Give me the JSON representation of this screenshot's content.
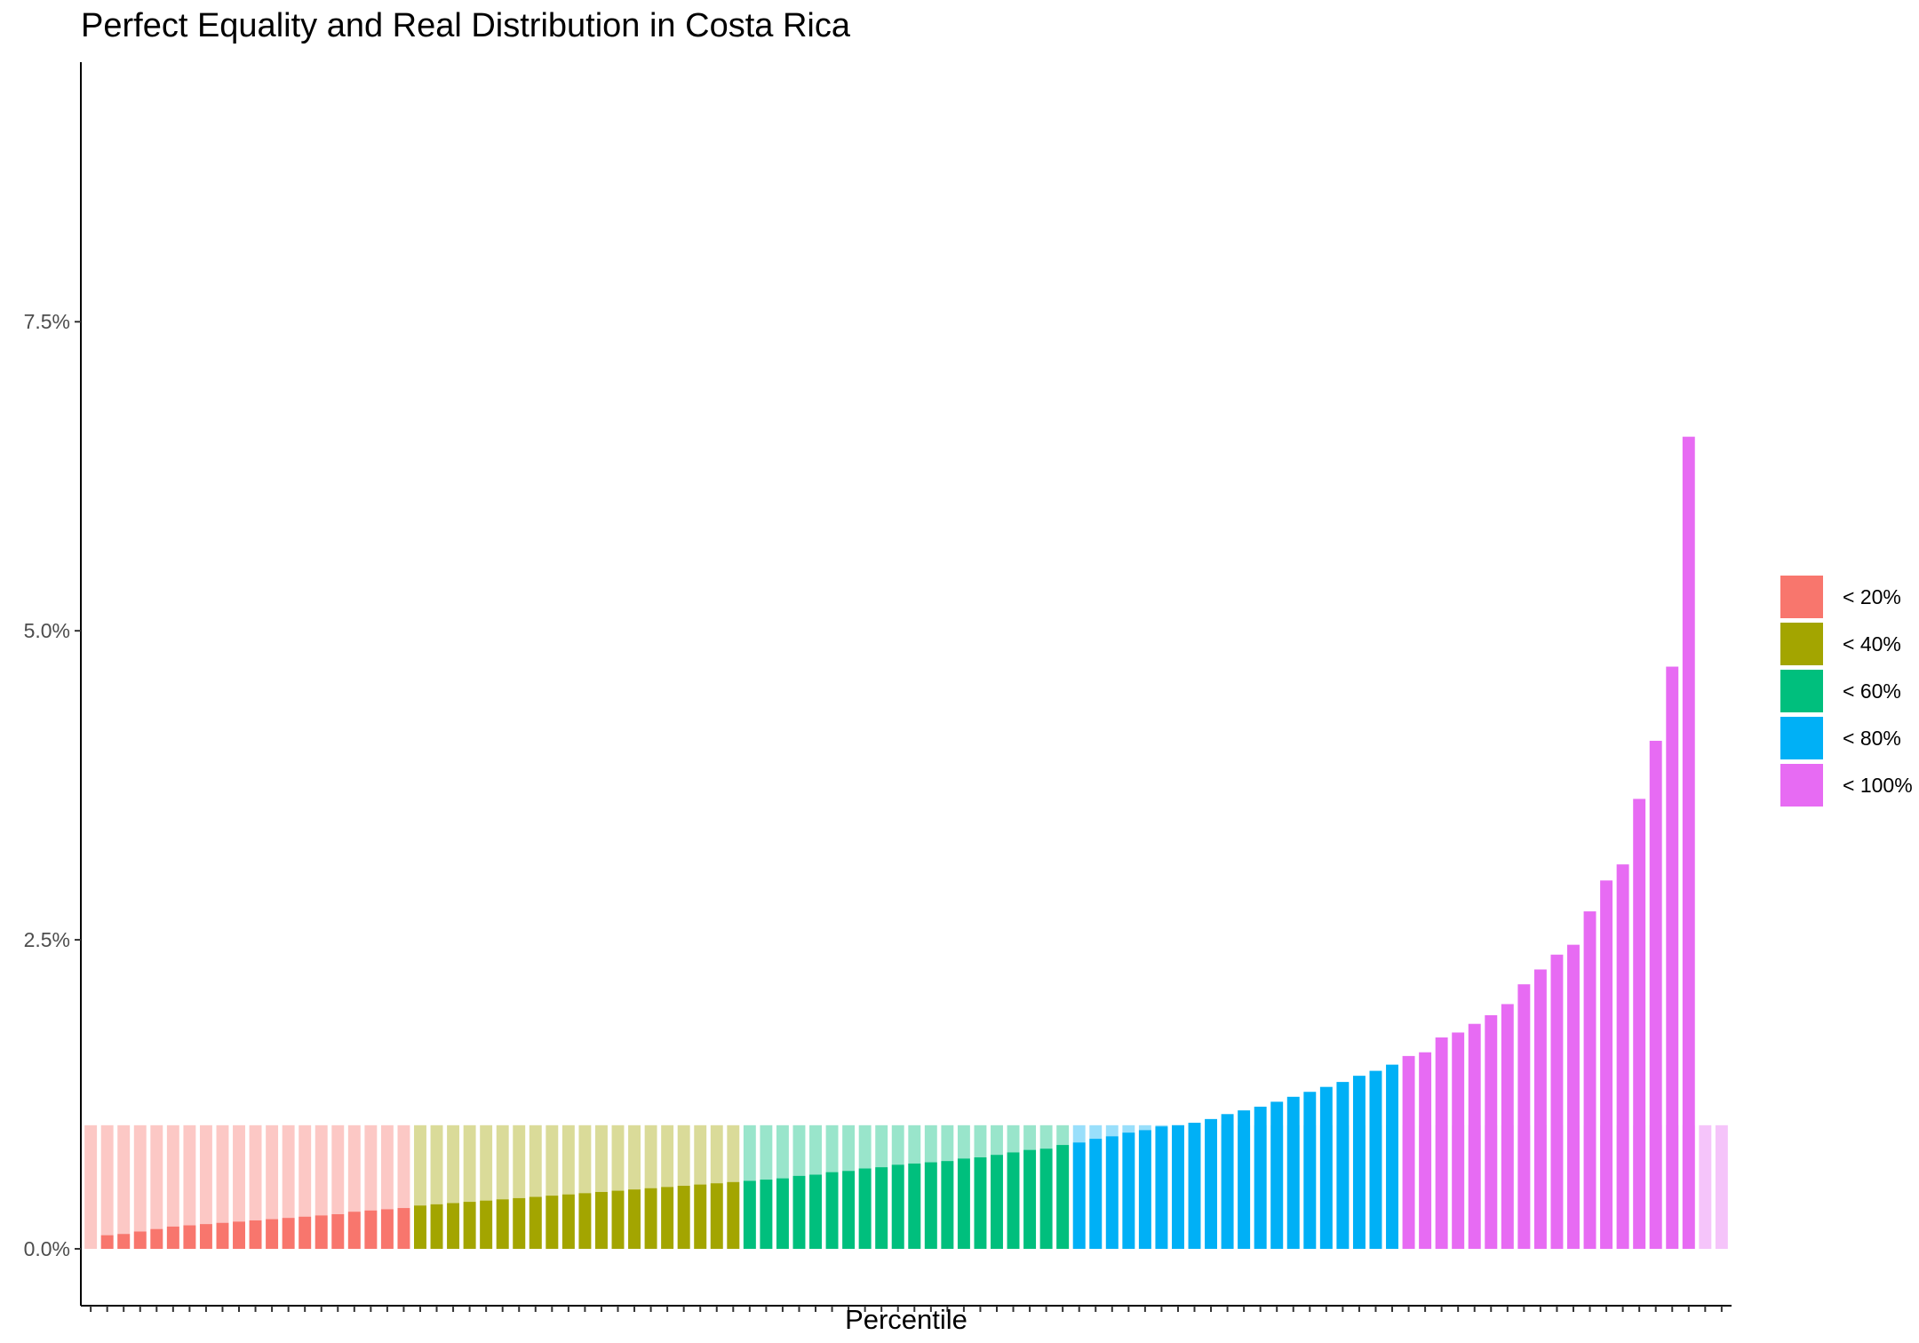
{
  "chart_data": {
    "type": "bar",
    "title": "Perfect Equality and Real Distribution in Costa Rica",
    "xlabel": "Percentile",
    "ylabel": "",
    "ylim": [
      -0.46,
      9.6
    ],
    "yticks": [
      {
        "value": 0.0,
        "label": "0.0%"
      },
      {
        "value": 2.5,
        "label": "2.5%"
      },
      {
        "value": 5.0,
        "label": "5.0%"
      },
      {
        "value": 7.5,
        "label": "7.5%"
      }
    ],
    "x": [
      1,
      2,
      3,
      4,
      5,
      6,
      7,
      8,
      9,
      10,
      11,
      12,
      13,
      14,
      15,
      16,
      17,
      18,
      19,
      20,
      21,
      22,
      23,
      24,
      25,
      26,
      27,
      28,
      29,
      30,
      31,
      32,
      33,
      34,
      35,
      36,
      37,
      38,
      39,
      40,
      41,
      42,
      43,
      44,
      45,
      46,
      47,
      48,
      49,
      50,
      51,
      52,
      53,
      54,
      55,
      56,
      57,
      58,
      59,
      60,
      61,
      62,
      63,
      64,
      65,
      66,
      67,
      68,
      69,
      70,
      71,
      72,
      73,
      74,
      75,
      76,
      77,
      78,
      79,
      80,
      81,
      82,
      83,
      84,
      85,
      86,
      87,
      88,
      89,
      90,
      91,
      92,
      93,
      94,
      95,
      96,
      97,
      98,
      99,
      100
    ],
    "x_tick_labels_shown": false,
    "grid": false,
    "legend_position": "right",
    "series": [
      {
        "name": "perfect equality",
        "opacity": 0.4,
        "values": [
          1,
          1,
          1,
          1,
          1,
          1,
          1,
          1,
          1,
          1,
          1,
          1,
          1,
          1,
          1,
          1,
          1,
          1,
          1,
          1,
          1,
          1,
          1,
          1,
          1,
          1,
          1,
          1,
          1,
          1,
          1,
          1,
          1,
          1,
          1,
          1,
          1,
          1,
          1,
          1,
          1,
          1,
          1,
          1,
          1,
          1,
          1,
          1,
          1,
          1,
          1,
          1,
          1,
          1,
          1,
          1,
          1,
          1,
          1,
          1,
          1,
          1,
          1,
          1,
          1,
          1,
          1,
          1,
          1,
          1,
          1,
          1,
          1,
          1,
          1,
          1,
          1,
          1,
          1,
          1,
          1,
          1,
          1,
          1,
          1,
          1,
          1,
          1,
          1,
          1,
          1,
          1,
          1,
          1,
          1,
          1,
          1,
          1,
          1,
          1
        ]
      },
      {
        "name": "real distribution",
        "opacity": 1.0,
        "values": [
          0.0,
          0.11,
          0.12,
          0.14,
          0.16,
          0.18,
          0.19,
          0.2,
          0.21,
          0.22,
          0.23,
          0.24,
          0.25,
          0.26,
          0.27,
          0.28,
          0.3,
          0.31,
          0.32,
          0.33,
          0.35,
          0.36,
          0.37,
          0.38,
          0.39,
          0.4,
          0.41,
          0.42,
          0.43,
          0.44,
          0.45,
          0.46,
          0.47,
          0.48,
          0.49,
          0.5,
          0.51,
          0.52,
          0.53,
          0.54,
          0.55,
          0.56,
          0.57,
          0.59,
          0.6,
          0.62,
          0.63,
          0.65,
          0.66,
          0.68,
          0.69,
          0.7,
          0.71,
          0.73,
          0.74,
          0.76,
          0.78,
          0.8,
          0.81,
          0.84,
          0.86,
          0.89,
          0.91,
          0.94,
          0.96,
          0.99,
          1.0,
          1.02,
          1.05,
          1.09,
          1.12,
          1.15,
          1.19,
          1.23,
          1.27,
          1.31,
          1.35,
          1.4,
          1.44,
          1.49,
          1.56,
          1.59,
          1.71,
          1.75,
          1.82,
          1.89,
          1.98,
          2.14,
          2.26,
          2.38,
          2.46,
          2.73,
          2.98,
          3.11,
          3.64,
          4.11,
          4.71,
          6.57,
          0,
          0
        ]
      }
    ],
    "groups": [
      {
        "label": "< 20%",
        "color": "#F8766D",
        "from": 1,
        "to": 20
      },
      {
        "label": "< 40%",
        "color": "#A3A500",
        "from": 21,
        "to": 40
      },
      {
        "label": "< 60%",
        "color": "#00BF7D",
        "from": 41,
        "to": 60
      },
      {
        "label": "< 80%",
        "color": "#00B0F6",
        "from": 61,
        "to": 80
      },
      {
        "label": "< 100%",
        "color": "#E76BF3",
        "from": 81,
        "to": 100
      }
    ]
  }
}
